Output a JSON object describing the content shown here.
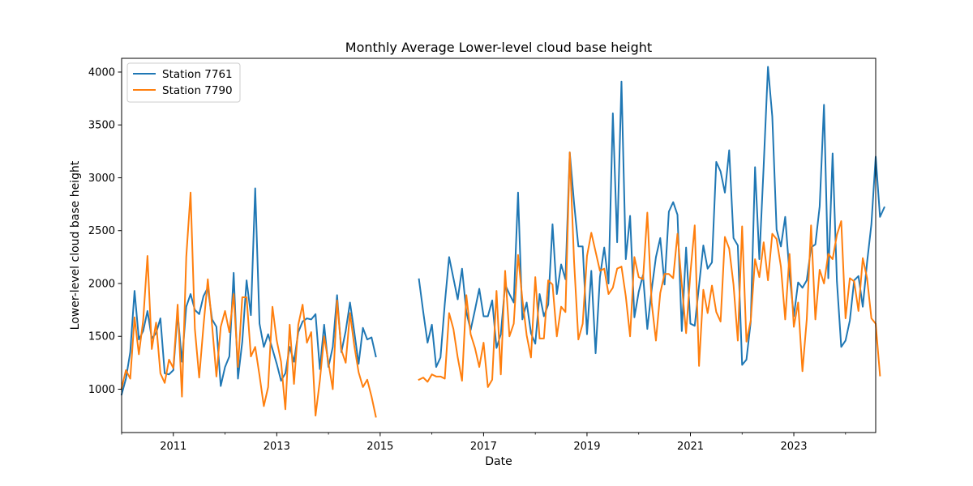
{
  "chart_data": {
    "type": "line",
    "title": "Monthly Average Lower-level cloud base height",
    "xlabel": "Date",
    "ylabel": "Lower-level cloud base height",
    "xlim": [
      "2010-01",
      "2024-08"
    ],
    "ylim": [
      590,
      4130
    ],
    "x_ticks": [
      "2011",
      "2013",
      "2015",
      "2017",
      "2019",
      "2021",
      "2023"
    ],
    "y_ticks": [
      1000,
      1500,
      2000,
      2500,
      3000,
      3500,
      4000
    ],
    "grid": false,
    "legend_position": "top-left",
    "series": [
      {
        "name": "Station 7761",
        "color": "#1f77b4",
        "start": "2010-01",
        "values": [
          950,
          1100,
          1350,
          1930,
          1470,
          1550,
          1740,
          1480,
          1530,
          1670,
          1150,
          1140,
          1180,
          1720,
          1260,
          1780,
          1900,
          1750,
          1710,
          1880,
          1960,
          1660,
          1590,
          1030,
          1210,
          1310,
          2100,
          1100,
          1450,
          2030,
          1700,
          2900,
          1620,
          1400,
          1520,
          1380,
          1240,
          1080,
          1150,
          1400,
          1260,
          1540,
          1640,
          1670,
          1660,
          1710,
          1190,
          1610,
          1210,
          1400,
          1890,
          1350,
          1550,
          1820,
          1540,
          1240,
          1580,
          1470,
          1490,
          1310,
          null,
          null,
          null,
          null,
          null,
          null,
          null,
          null,
          null,
          2040,
          1730,
          1440,
          1610,
          1210,
          1300,
          1810,
          2250,
          2050,
          1850,
          2140,
          1730,
          1560,
          1750,
          1950,
          1690,
          1690,
          1840,
          1390,
          1520,
          1990,
          1900,
          1820,
          2860,
          1660,
          1820,
          1530,
          1430,
          1900,
          1690,
          1800,
          2560,
          1900,
          2180,
          2040,
          3240,
          2760,
          2350,
          2350,
          1520,
          2120,
          1340,
          2060,
          2340,
          2000,
          3610,
          2390,
          3910,
          2230,
          2640,
          1680,
          1920,
          2080,
          1570,
          1940,
          2250,
          2430,
          1990,
          2680,
          2770,
          2650,
          1550,
          2340,
          1620,
          1600,
          1980,
          2360,
          2140,
          2200,
          3150,
          3060,
          2860,
          3260,
          2430,
          2360,
          1230,
          1280,
          1640,
          3100,
          2230,
          3110,
          4050,
          3580,
          2510,
          2350,
          2630,
          2090,
          1690,
          2010,
          1960,
          2030,
          2340,
          2370,
          2730,
          3690,
          2050,
          3230,
          2020,
          1400,
          1460,
          1650,
          2030,
          2070,
          1780,
          2200,
          2560,
          3200,
          2630,
          2720
        ]
      },
      {
        "name": "Station 7790",
        "color": "#ff7f0e",
        "start": "2010-01",
        "values": [
          1010,
          1180,
          1100,
          1680,
          1330,
          1650,
          2260,
          1380,
          1630,
          1150,
          1060,
          1280,
          1200,
          1800,
          930,
          2250,
          2860,
          1570,
          1110,
          1600,
          2040,
          1600,
          1120,
          1590,
          1740,
          1540,
          1900,
          1210,
          1870,
          1870,
          1310,
          1400,
          1130,
          840,
          1020,
          1780,
          1460,
          1260,
          810,
          1610,
          1050,
          1610,
          1800,
          1440,
          1540,
          750,
          1080,
          1500,
          1250,
          1000,
          1840,
          1370,
          1250,
          1720,
          1410,
          1160,
          1020,
          1090,
          930,
          740,
          null,
          null,
          null,
          null,
          null,
          null,
          null,
          null,
          null,
          1090,
          1110,
          1070,
          1140,
          1120,
          1120,
          1100,
          1720,
          1570,
          1300,
          1080,
          1890,
          1520,
          1390,
          1210,
          1440,
          1020,
          1090,
          1930,
          1140,
          2120,
          1500,
          1620,
          2270,
          1850,
          1510,
          1300,
          2060,
          1480,
          1480,
          2030,
          1990,
          1500,
          1780,
          1730,
          3240,
          2210,
          1470,
          1620,
          2260,
          2480,
          2300,
          2120,
          2140,
          1900,
          1960,
          2140,
          2160,
          1880,
          1500,
          2250,
          2060,
          2040,
          2670,
          1820,
          1460,
          1910,
          2090,
          2090,
          2050,
          2470,
          1990,
          1530,
          2100,
          2550,
          1220,
          1940,
          1720,
          1980,
          1730,
          1640,
          2440,
          2330,
          1990,
          1460,
          2540,
          1450,
          1650,
          2230,
          2060,
          2390,
          2030,
          2470,
          2420,
          2160,
          1660,
          2280,
          1590,
          1820,
          1170,
          1660,
          2550,
          1660,
          2130,
          2000,
          2280,
          2230,
          2460,
          2590,
          1670,
          2050,
          2020,
          1740,
          2240,
          2050,
          1670,
          1620,
          1130
        ]
      }
    ]
  }
}
